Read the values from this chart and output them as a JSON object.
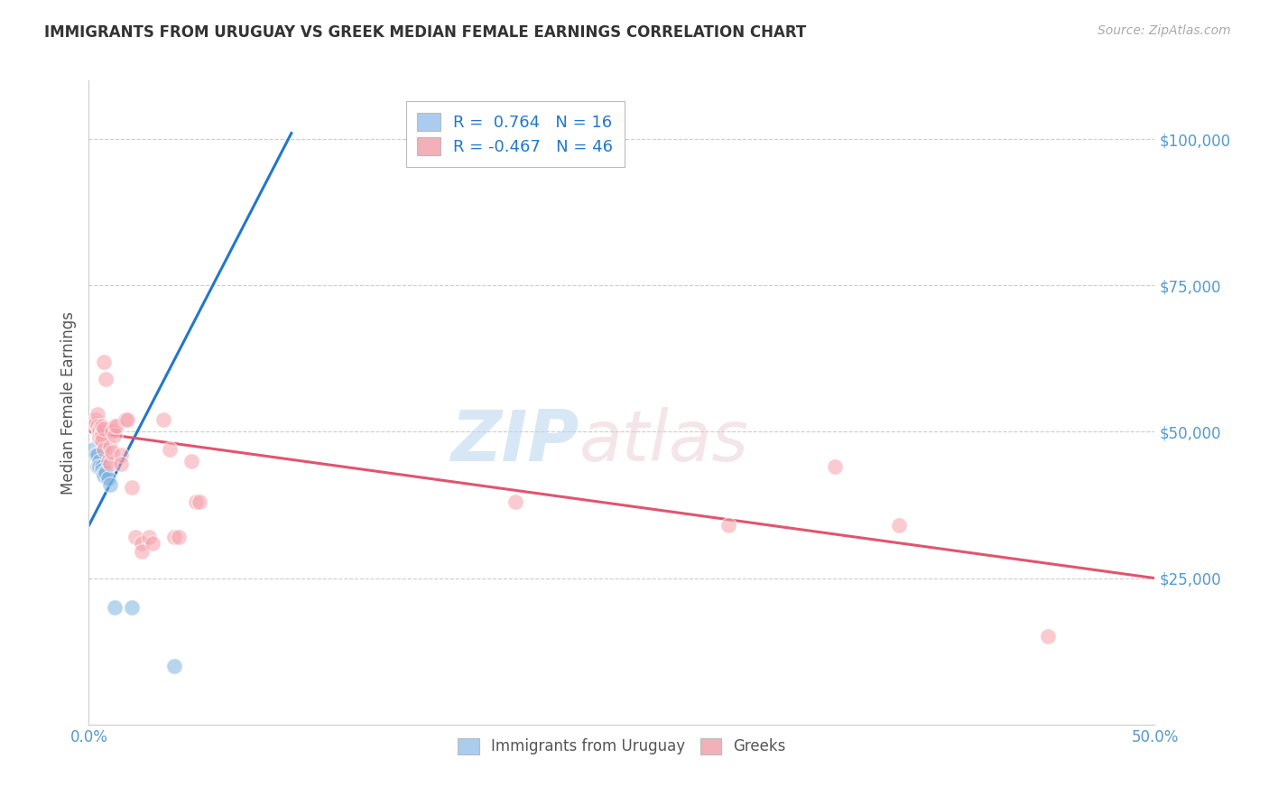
{
  "title": "IMMIGRANTS FROM URUGUAY VS GREEK MEDIAN FEMALE EARNINGS CORRELATION CHART",
  "source": "Source: ZipAtlas.com",
  "ylabel": "Median Female Earnings",
  "xlim": [
    0,
    0.5
  ],
  "ylim": [
    0,
    110000
  ],
  "yticks": [
    25000,
    50000,
    75000,
    100000
  ],
  "ytick_labels": [
    "$25,000",
    "$50,000",
    "$75,000",
    "$100,000"
  ],
  "legend_blue_r": "0.764",
  "legend_blue_n": "16",
  "legend_pink_r": "-0.467",
  "legend_pink_n": "46",
  "blue_scatter_color": "#7fb3e0",
  "pink_scatter_color": "#f5a0aa",
  "blue_line_color": "#2277cc",
  "pink_line_color": "#e05570",
  "blue_scatter": [
    [
      0.002,
      47000
    ],
    [
      0.003,
      46000
    ],
    [
      0.004,
      46000
    ],
    [
      0.004,
      44000
    ],
    [
      0.005,
      45000
    ],
    [
      0.005,
      44000
    ],
    [
      0.006,
      44000
    ],
    [
      0.006,
      43500
    ],
    [
      0.007,
      43000
    ],
    [
      0.007,
      42500
    ],
    [
      0.008,
      43000
    ],
    [
      0.009,
      42000
    ],
    [
      0.01,
      41000
    ],
    [
      0.012,
      20000
    ],
    [
      0.02,
      20000
    ],
    [
      0.04,
      10000
    ]
  ],
  "pink_scatter": [
    [
      0.002,
      51000
    ],
    [
      0.003,
      52000
    ],
    [
      0.003,
      51500
    ],
    [
      0.004,
      53000
    ],
    [
      0.004,
      51000
    ],
    [
      0.005,
      50500
    ],
    [
      0.005,
      50000
    ],
    [
      0.005,
      49000
    ],
    [
      0.006,
      50000
    ],
    [
      0.006,
      49500
    ],
    [
      0.006,
      51000
    ],
    [
      0.006,
      48500
    ],
    [
      0.007,
      50500
    ],
    [
      0.007,
      47000
    ],
    [
      0.007,
      62000
    ],
    [
      0.008,
      59000
    ],
    [
      0.009,
      45000
    ],
    [
      0.01,
      44500
    ],
    [
      0.01,
      47500
    ],
    [
      0.011,
      50000
    ],
    [
      0.011,
      46500
    ],
    [
      0.012,
      51000
    ],
    [
      0.012,
      49500
    ],
    [
      0.013,
      51000
    ],
    [
      0.015,
      46000
    ],
    [
      0.015,
      44500
    ],
    [
      0.017,
      52000
    ],
    [
      0.018,
      52000
    ],
    [
      0.02,
      40500
    ],
    [
      0.022,
      32000
    ],
    [
      0.025,
      31000
    ],
    [
      0.025,
      29500
    ],
    [
      0.028,
      32000
    ],
    [
      0.03,
      31000
    ],
    [
      0.035,
      52000
    ],
    [
      0.038,
      47000
    ],
    [
      0.04,
      32000
    ],
    [
      0.042,
      32000
    ],
    [
      0.048,
      45000
    ],
    [
      0.05,
      38000
    ],
    [
      0.052,
      38000
    ],
    [
      0.2,
      38000
    ],
    [
      0.3,
      34000
    ],
    [
      0.35,
      44000
    ],
    [
      0.38,
      34000
    ],
    [
      0.45,
      15000
    ]
  ],
  "blue_line_x": [
    0.0,
    0.095
  ],
  "blue_line_y": [
    34000,
    101000
  ],
  "pink_line_x": [
    0.0,
    0.5
  ],
  "pink_line_y": [
    50000,
    25000
  ],
  "background_color": "#ffffff",
  "grid_color": "#cccccc",
  "title_color": "#333333",
  "tick_color": "#5599cc",
  "ylabel_color": "#555555"
}
